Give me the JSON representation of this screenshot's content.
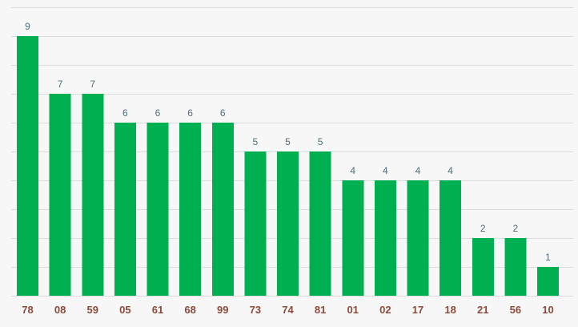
{
  "chart_data": {
    "type": "bar",
    "categories": [
      "78",
      "08",
      "59",
      "05",
      "61",
      "68",
      "99",
      "73",
      "74",
      "81",
      "01",
      "02",
      "17",
      "18",
      "21",
      "56",
      "10"
    ],
    "values": [
      9,
      7,
      7,
      6,
      6,
      6,
      6,
      5,
      5,
      5,
      4,
      4,
      4,
      4,
      2,
      2,
      1
    ],
    "title": "",
    "xlabel": "",
    "ylabel": "",
    "ylim": [
      0,
      10
    ],
    "grid": true,
    "show_values": true,
    "show_y_ticks": false
  },
  "colors": {
    "bar": "#00b050",
    "grid": "#dcdcdc",
    "value_label": "#4d6f7d",
    "category_label": "#8b4a3a",
    "background": "#f7f7f7"
  }
}
